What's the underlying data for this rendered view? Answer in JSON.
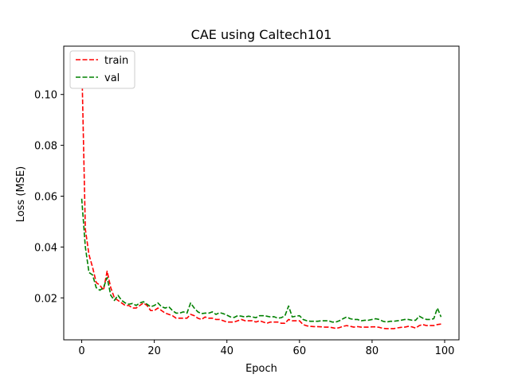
{
  "chart_data": {
    "type": "line",
    "title": "CAE using Caltech101",
    "xlabel": "Epoch",
    "ylabel": "Loss (MSE)",
    "xlim": [
      -4.95,
      103.95
    ],
    "ylim": [
      0.0035,
      0.119
    ],
    "xticks": [
      0,
      20,
      40,
      60,
      80,
      100
    ],
    "yticks": [
      0.02,
      0.04,
      0.06,
      0.08,
      0.1
    ],
    "ytick_labels": [
      "0.02",
      "0.04",
      "0.06",
      "0.08",
      "0.10"
    ],
    "grid": false,
    "legend_position": "top-left",
    "x": [
      0,
      1,
      2,
      3,
      4,
      5,
      6,
      7,
      8,
      9,
      10,
      11,
      12,
      13,
      14,
      15,
      16,
      17,
      18,
      19,
      20,
      21,
      22,
      23,
      24,
      25,
      26,
      27,
      28,
      29,
      30,
      31,
      32,
      33,
      34,
      35,
      36,
      37,
      38,
      39,
      40,
      41,
      42,
      43,
      44,
      45,
      46,
      47,
      48,
      49,
      50,
      51,
      52,
      53,
      54,
      55,
      56,
      57,
      58,
      59,
      60,
      61,
      62,
      63,
      64,
      65,
      66,
      67,
      68,
      69,
      70,
      71,
      72,
      73,
      74,
      75,
      76,
      77,
      78,
      79,
      80,
      81,
      82,
      83,
      84,
      85,
      86,
      87,
      88,
      89,
      90,
      91,
      92,
      93,
      94,
      95,
      96,
      97,
      98,
      99
    ],
    "series": [
      {
        "name": "train",
        "color": "#ff0000",
        "dash": "dashed",
        "values": [
          0.114,
          0.047,
          0.037,
          0.032,
          0.026,
          0.025,
          0.023,
          0.0305,
          0.024,
          0.02,
          0.019,
          0.018,
          0.017,
          0.017,
          0.016,
          0.016,
          0.017,
          0.018,
          0.017,
          0.015,
          0.015,
          0.016,
          0.015,
          0.014,
          0.0135,
          0.013,
          0.012,
          0.012,
          0.012,
          0.012,
          0.0135,
          0.013,
          0.012,
          0.0115,
          0.0125,
          0.012,
          0.012,
          0.0115,
          0.0115,
          0.011,
          0.0105,
          0.0105,
          0.0105,
          0.011,
          0.0115,
          0.011,
          0.011,
          0.011,
          0.0105,
          0.011,
          0.0105,
          0.01,
          0.0105,
          0.0105,
          0.0105,
          0.01,
          0.01,
          0.0115,
          0.011,
          0.011,
          0.011,
          0.0095,
          0.009,
          0.0088,
          0.0087,
          0.0087,
          0.0086,
          0.0085,
          0.0085,
          0.0083,
          0.008,
          0.0083,
          0.0088,
          0.0091,
          0.0088,
          0.0085,
          0.0087,
          0.0085,
          0.0085,
          0.0085,
          0.0086,
          0.0086,
          0.0084,
          0.008,
          0.0079,
          0.0079,
          0.0079,
          0.0082,
          0.0084,
          0.0085,
          0.0088,
          0.0086,
          0.0081,
          0.0091,
          0.0095,
          0.0091,
          0.0091,
          0.0091,
          0.0095,
          0.0097
        ]
      },
      {
        "name": "val",
        "color": "#008000",
        "dash": "dashed",
        "values": [
          0.059,
          0.04,
          0.03,
          0.029,
          0.024,
          0.023,
          0.024,
          0.028,
          0.021,
          0.019,
          0.021,
          0.019,
          0.018,
          0.0175,
          0.0178,
          0.017,
          0.018,
          0.0185,
          0.0175,
          0.0165,
          0.017,
          0.018,
          0.0165,
          0.016,
          0.0165,
          0.015,
          0.014,
          0.014,
          0.0145,
          0.014,
          0.018,
          0.016,
          0.0145,
          0.0138,
          0.014,
          0.014,
          0.0145,
          0.0135,
          0.0142,
          0.0138,
          0.0132,
          0.0125,
          0.0123,
          0.013,
          0.0128,
          0.0125,
          0.0128,
          0.0125,
          0.0122,
          0.013,
          0.013,
          0.0128,
          0.0125,
          0.0126,
          0.012,
          0.0122,
          0.013,
          0.0168,
          0.0125,
          0.0128,
          0.013,
          0.0115,
          0.011,
          0.0108,
          0.0108,
          0.0108,
          0.011,
          0.011,
          0.011,
          0.0105,
          0.0105,
          0.011,
          0.0118,
          0.0125,
          0.0118,
          0.0115,
          0.0115,
          0.011,
          0.0112,
          0.0112,
          0.0115,
          0.0118,
          0.0115,
          0.0108,
          0.0105,
          0.0108,
          0.0108,
          0.011,
          0.0112,
          0.0115,
          0.0115,
          0.0112,
          0.0112,
          0.0128,
          0.012,
          0.0115,
          0.0115,
          0.0118,
          0.016,
          0.0125
        ]
      }
    ]
  }
}
